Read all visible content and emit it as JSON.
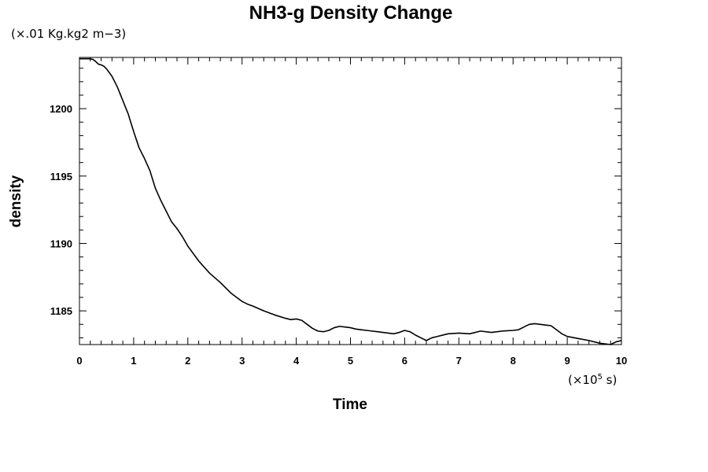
{
  "chart_data": {
    "type": "line",
    "title": "NH3-g Density Change",
    "y_units": "(×.01 Kg.kg2 m−3)",
    "x_units_prefix": "(×10",
    "x_units_exp": "5",
    "x_units_suffix": " s)",
    "xlabel": "Time",
    "ylabel": "density",
    "xlim": [
      0,
      10
    ],
    "ylim": [
      1182.5,
      1203.8
    ],
    "x_ticks": [
      0,
      1,
      2,
      3,
      4,
      5,
      6,
      7,
      8,
      9,
      10
    ],
    "x_tick_labels": [
      "0",
      "1",
      "2",
      "3",
      "4",
      "5",
      "6",
      "7",
      "8",
      "9",
      "10"
    ],
    "y_ticks": [
      1185,
      1190,
      1195,
      1200
    ],
    "y_tick_labels": [
      "1185",
      "1190",
      "1195",
      "1200"
    ],
    "grid": false,
    "legend": "none",
    "line_color": "#000000",
    "series": [
      {
        "x": [
          0,
          0.1,
          0.2,
          0.25,
          0.3,
          0.35,
          0.4,
          0.45,
          0.5,
          0.6,
          0.7,
          0.8,
          0.9,
          1.0,
          1.1,
          1.2,
          1.3,
          1.4,
          1.5,
          1.6,
          1.7,
          1.8,
          1.9,
          2.0,
          2.2,
          2.4,
          2.6,
          2.8,
          3.0,
          3.1,
          3.2,
          3.4,
          3.6,
          3.8,
          3.9,
          4.0,
          4.1,
          4.2,
          4.3,
          4.4,
          4.5,
          4.6,
          4.7,
          4.8,
          4.9,
          5.0,
          5.1,
          5.2,
          5.3,
          5.4,
          5.5,
          5.6,
          5.7,
          5.8,
          5.9,
          6.0,
          6.1,
          6.2,
          6.3,
          6.4,
          6.5,
          6.6,
          6.8,
          7.0,
          7.2,
          7.4,
          7.6,
          7.8,
          8.0,
          8.1,
          8.2,
          8.3,
          8.4,
          8.5,
          8.6,
          8.7,
          8.8,
          8.9,
          9.0,
          9.2,
          9.4,
          9.6,
          9.7,
          9.8,
          9.9,
          10.0
        ],
        "y": [
          1203.7,
          1203.7,
          1203.7,
          1203.65,
          1203.5,
          1203.3,
          1203.25,
          1203.15,
          1202.95,
          1202.4,
          1201.6,
          1200.6,
          1199.6,
          1198.3,
          1197.1,
          1196.3,
          1195.4,
          1194.1,
          1193.2,
          1192.4,
          1191.6,
          1191.1,
          1190.5,
          1189.8,
          1188.7,
          1187.8,
          1187.1,
          1186.3,
          1185.7,
          1185.5,
          1185.35,
          1185.0,
          1184.7,
          1184.45,
          1184.35,
          1184.4,
          1184.3,
          1184.0,
          1183.7,
          1183.5,
          1183.45,
          1183.55,
          1183.75,
          1183.85,
          1183.8,
          1183.75,
          1183.65,
          1183.6,
          1183.55,
          1183.5,
          1183.45,
          1183.4,
          1183.35,
          1183.3,
          1183.4,
          1183.55,
          1183.45,
          1183.2,
          1183.0,
          1182.8,
          1183.0,
          1183.1,
          1183.3,
          1183.35,
          1183.3,
          1183.5,
          1183.4,
          1183.5,
          1183.55,
          1183.6,
          1183.8,
          1184.0,
          1184.05,
          1184.0,
          1183.95,
          1183.9,
          1183.6,
          1183.3,
          1183.1,
          1182.95,
          1182.8,
          1182.6,
          1182.55,
          1182.5,
          1182.7,
          1182.8
        ]
      }
    ]
  }
}
